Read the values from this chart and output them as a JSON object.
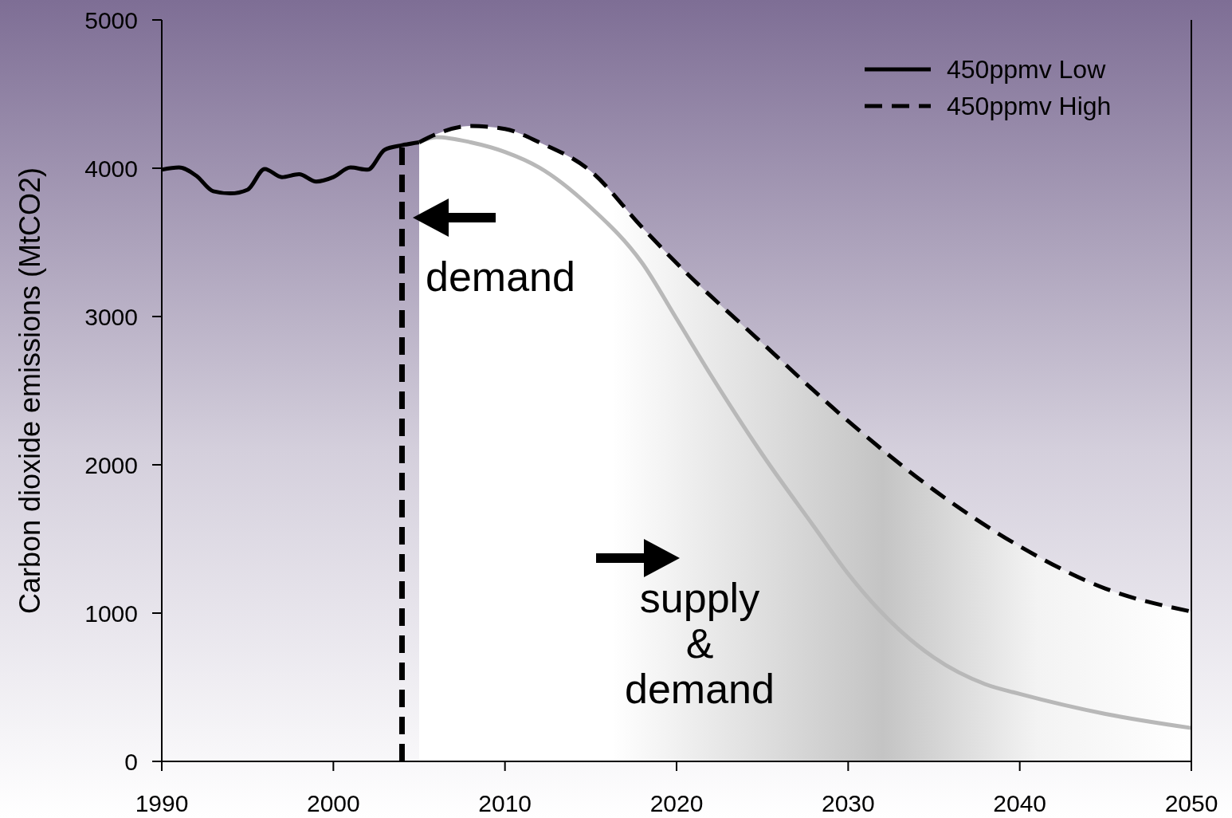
{
  "chart_data": {
    "type": "line",
    "ylabel": "Carbon dioxide emissions (MtCO2)",
    "xlim": [
      1990,
      2050
    ],
    "xticks": [
      1990,
      2000,
      2010,
      2020,
      2030,
      2040,
      2050
    ],
    "ylim": [
      0,
      5000
    ],
    "yticks": [
      0,
      1000,
      2000,
      3000,
      4000,
      5000
    ],
    "grid": false,
    "legend": "top right",
    "marker": "none",
    "series": [
      {
        "name": "450ppmv Low",
        "color": "#000000",
        "line_style": "solid",
        "x": [
          1990,
          1991,
          1992,
          1993,
          1994,
          1995,
          1996,
          1997,
          1998,
          1999,
          2000,
          2001,
          2002,
          2003,
          2004,
          2005
        ],
        "values": [
          3990,
          4005,
          3950,
          3845,
          3830,
          3855,
          3995,
          3940,
          3960,
          3910,
          3940,
          4005,
          3990,
          4125,
          4155,
          4175
        ]
      },
      {
        "color": "#b8b8b8",
        "line_style": "solid",
        "x": [
          2005,
          2006,
          2008,
          2010,
          2012,
          2015,
          2018,
          2020,
          2022,
          2025,
          2028,
          2030,
          2033,
          2035,
          2038,
          2040,
          2045,
          2050
        ],
        "values": [
          4175,
          4210,
          4175,
          4110,
          4005,
          3735,
          3360,
          2985,
          2605,
          2070,
          1585,
          1265,
          885,
          700,
          520,
          455,
          320,
          225
        ]
      },
      {
        "name": "450ppmv High",
        "type": "area",
        "color": "#000000",
        "line_style": "dashed",
        "x": [
          2005,
          2006,
          2008,
          2010,
          2012,
          2015,
          2018,
          2020,
          2025,
          2030,
          2035,
          2040,
          2045,
          2050
        ],
        "values": [
          4175,
          4230,
          4285,
          4265,
          4175,
          3980,
          3600,
          3360,
          2820,
          2295,
          1830,
          1450,
          1165,
          1010
        ]
      }
    ],
    "ref_lines": [
      {
        "axis": "x",
        "value": 2004,
        "line_style": "dashed",
        "color": "#000000"
      }
    ],
    "annotations": [
      "demand",
      "supply & demand"
    ]
  }
}
